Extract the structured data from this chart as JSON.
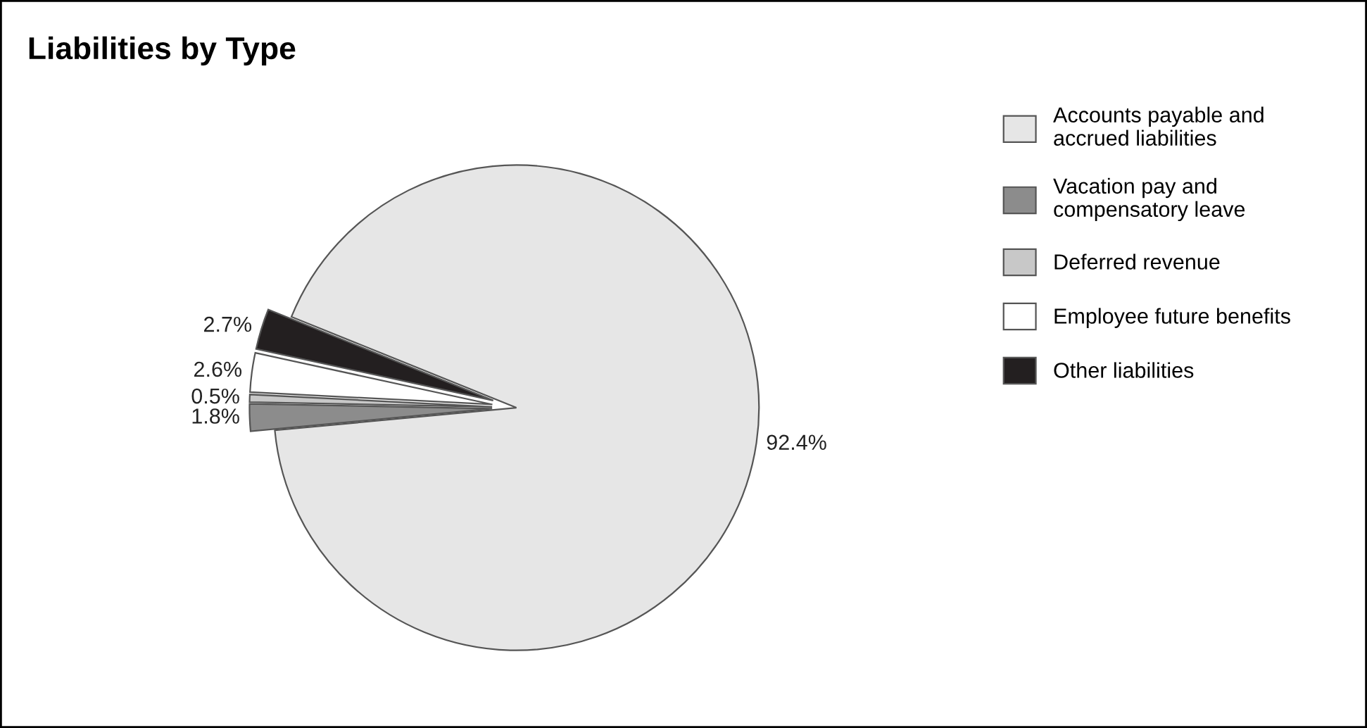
{
  "chart_data": {
    "type": "pie",
    "title": "Liabilities by Type",
    "categories": [
      "Accounts payable and\naccrued liabilities",
      "Vacation pay and\ncompensatory leave",
      "Deferred revenue",
      "Employee future benefits",
      "Other liabilities"
    ],
    "values": [
      92.4,
      1.8,
      0.5,
      2.6,
      2.7
    ],
    "colors": [
      "#e6e6e6",
      "#8c8c8c",
      "#c8c8c8",
      "#ffffff",
      "#231f20"
    ],
    "value_labels": [
      "92.4%",
      "1.8%",
      "0.5%",
      "2.6%",
      "2.7%"
    ],
    "legend": "right"
  }
}
